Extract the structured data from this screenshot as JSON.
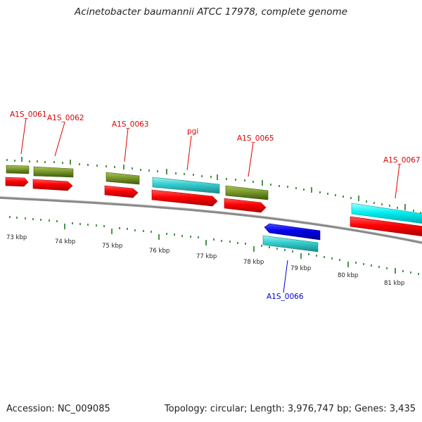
{
  "title": "Acinetobacter baumannii ATCC 17978, complete genome",
  "footer": {
    "accession": "Accession: NC_009085",
    "summary": "Topology: circular; Length: 3,976,747 bp; Genes: 3,435"
  },
  "kbp_labels": [
    "73 kbp",
    "74 kbp",
    "75 kbp",
    "76 kbp",
    "77 kbp",
    "78 kbp",
    "79 kbp",
    "80 kbp",
    "81 kbp"
  ],
  "gene_labels": [
    {
      "name": "A1S_0061",
      "strand": "forward"
    },
    {
      "name": "A1S_0062",
      "strand": "forward"
    },
    {
      "name": "A1S_0063",
      "strand": "forward"
    },
    {
      "name": "pgi",
      "strand": "forward"
    },
    {
      "name": "A1S_0065",
      "strand": "forward"
    },
    {
      "name": "A1S_0067",
      "strand": "forward"
    },
    {
      "name": "A1S_0066",
      "strand": "reverse"
    }
  ],
  "colors": {
    "forward_label": "#dd0000",
    "reverse_label": "#0000cc",
    "cds_red": "#ff0000",
    "gene_olive": "#7a9a2a",
    "rna_cyan": "#33cccc",
    "reverse_blue": "#0000ee",
    "tick_green": "#1e7a1e",
    "backbone": "#888888"
  }
}
